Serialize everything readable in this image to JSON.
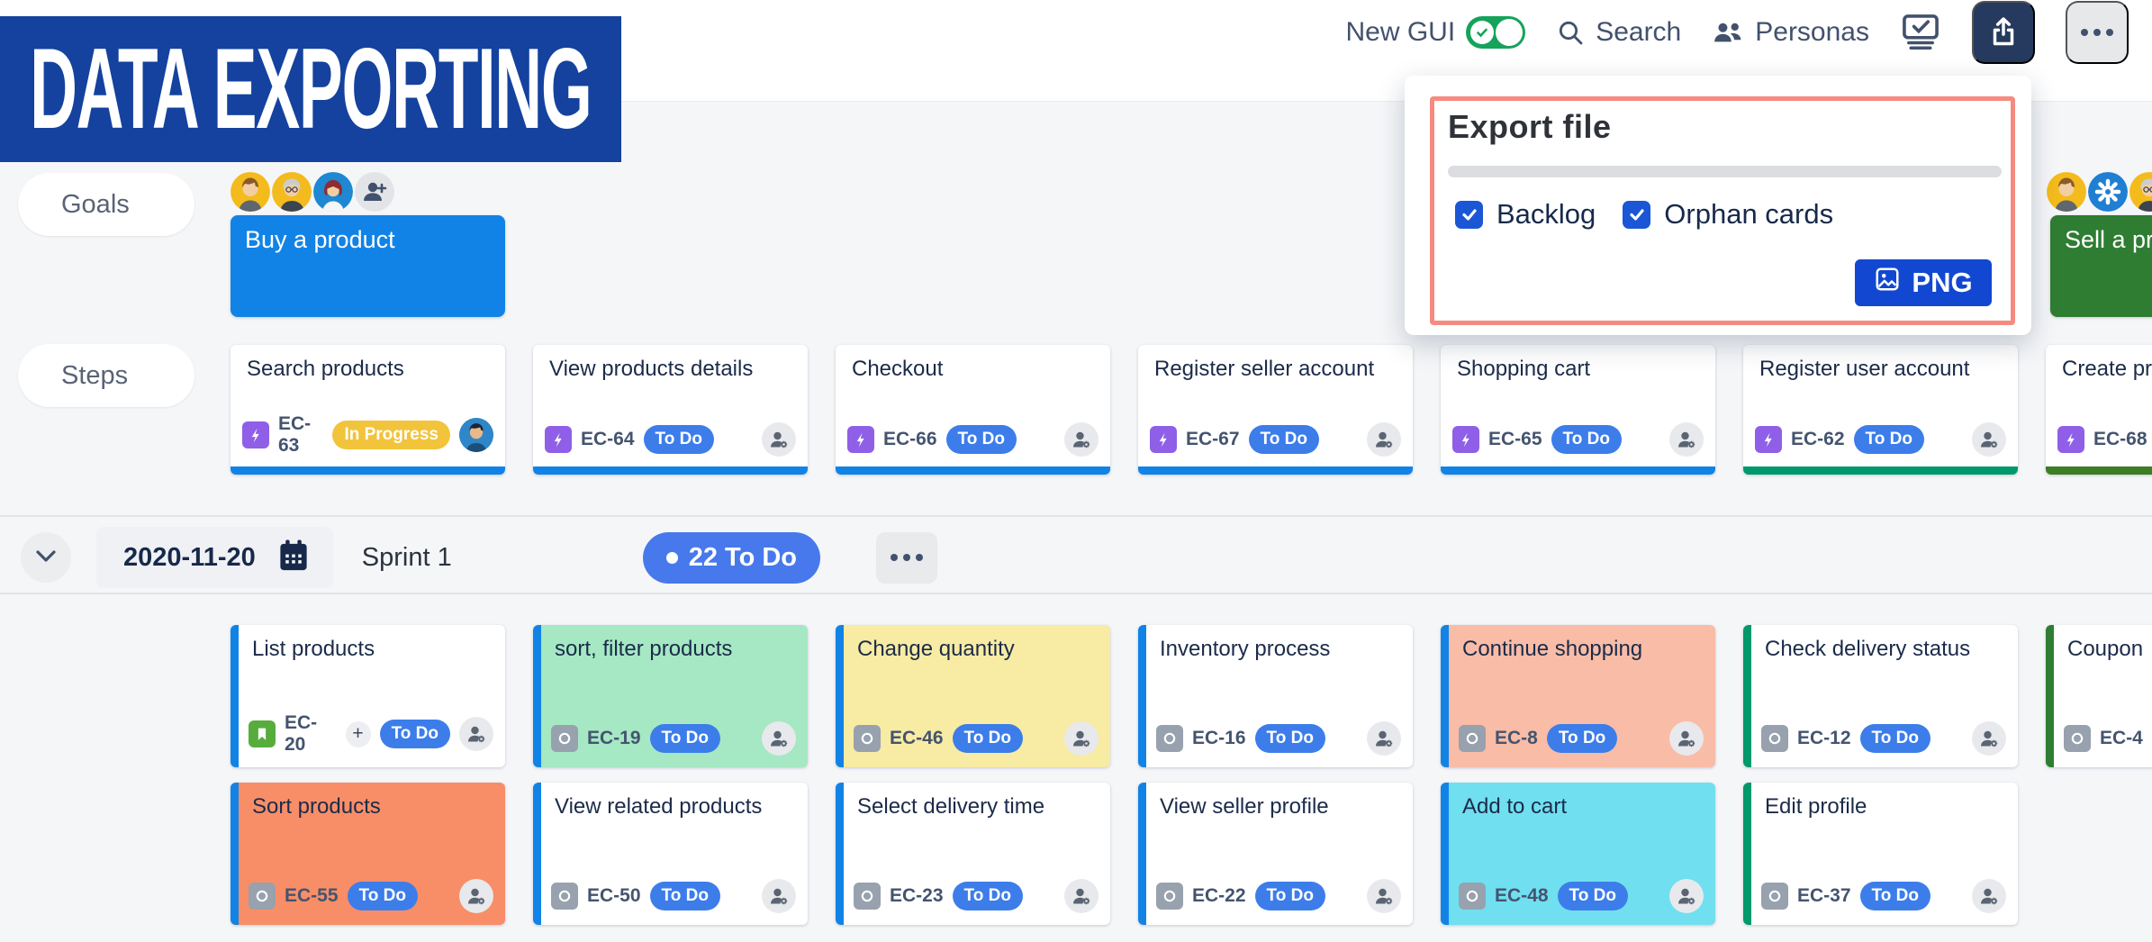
{
  "banner": {
    "title": "DATA EXPORTING"
  },
  "toolbar": {
    "new_gui_label": "New GUI",
    "new_gui_on": true,
    "search_label": "Search",
    "personas_label": "Personas",
    "icons": [
      "board-check-icon",
      "share-icon",
      "more-icon"
    ]
  },
  "export_popup": {
    "title": "Export file",
    "checkboxes": [
      {
        "label": "Backlog",
        "checked": true
      },
      {
        "label": "Orphan cards",
        "checked": true
      }
    ],
    "export_button_label": "PNG",
    "export_button_icon": "image-icon",
    "highlight_color": "#F58B80",
    "button_color": "#1248D1"
  },
  "palette": {
    "status": {
      "To Do": "#3C7DEA",
      "In Progress": "#F2C43B"
    },
    "accent_blue": "#1283E6",
    "accent_teal": "#00996B",
    "accent_green_dark": "#3D7D23",
    "accent_green": "#2E7D32"
  },
  "board": {
    "goals_label": "Goals",
    "steps_label": "Steps",
    "personas_left": [
      "man",
      "grandma",
      "woman"
    ],
    "personas_left_add": "add-persona-button",
    "personas_right": [
      "man",
      "gear",
      "grandma"
    ],
    "goals": [
      {
        "title": "Buy a product",
        "bg": "#1283E6"
      },
      {
        "title": "Sell a product",
        "bg": "#2E7D32"
      }
    ],
    "steps": [
      {
        "title": "Search products",
        "key": "EC-63",
        "type": "epic",
        "status": "In Progress",
        "accent": "#1283E6",
        "assignee": "photo"
      },
      {
        "title": "View products details",
        "key": "EC-64",
        "type": "epic",
        "status": "To Do",
        "accent": "#1283E6",
        "assignee": "unassigned"
      },
      {
        "title": "Checkout",
        "key": "EC-66",
        "type": "epic",
        "status": "To Do",
        "accent": "#1283E6",
        "assignee": "unassigned"
      },
      {
        "title": "Register seller account",
        "key": "EC-67",
        "type": "epic",
        "status": "To Do",
        "accent": "#1283E6",
        "assignee": "unassigned"
      },
      {
        "title": "Shopping cart",
        "key": "EC-65",
        "type": "epic",
        "status": "To Do",
        "accent": "#1283E6",
        "assignee": "unassigned"
      },
      {
        "title": "Register user account",
        "key": "EC-62",
        "type": "epic",
        "status": "To Do",
        "accent": "#00996B",
        "assignee": "unassigned"
      },
      {
        "title": "Create product",
        "key": "EC-68",
        "type": "epic",
        "status": "To Do",
        "accent": "#3D7D23",
        "assignee": "unassigned"
      }
    ],
    "sprint": {
      "date": "2020-11-20",
      "name": "Sprint 1",
      "badge": "22 To Do",
      "rows": [
        [
          {
            "title": "List products",
            "key": "EC-20",
            "type": "story",
            "status": "To Do",
            "accent": "#1283E6",
            "bg": "#FFFFFF",
            "plus": true,
            "assignee": "unassigned"
          },
          {
            "title": "sort, filter products",
            "key": "EC-19",
            "type": "task",
            "status": "To Do",
            "accent": "#1283E6",
            "bg": "#A5E8C3",
            "assignee": "unassigned"
          },
          {
            "title": "Change quantity",
            "key": "EC-46",
            "type": "task",
            "status": "To Do",
            "accent": "#1283E6",
            "bg": "#F8EBA3",
            "assignee": "unassigned"
          },
          {
            "title": "Inventory process",
            "key": "EC-16",
            "type": "task",
            "status": "To Do",
            "accent": "#1283E6",
            "bg": "#FFFFFF",
            "assignee": "unassigned"
          },
          {
            "title": "Continue shopping",
            "key": "EC-8",
            "type": "task",
            "status": "To Do",
            "accent": "#1283E6",
            "bg": "#F9BCA6",
            "assignee": "unassigned"
          },
          {
            "title": "Check delivery status",
            "key": "EC-12",
            "type": "task",
            "status": "To Do",
            "accent": "#00996B",
            "bg": "#FFFFFF",
            "assignee": "unassigned"
          },
          {
            "title": "Coupon",
            "key": "EC-4",
            "type": "task",
            "status": "To Do",
            "accent": "#2E7D32",
            "bg": "#FFFFFF",
            "assignee": "unassigned"
          }
        ],
        [
          {
            "title": "Sort products",
            "key": "EC-55",
            "type": "task",
            "status": "To Do",
            "accent": "#1283E6",
            "bg": "#F88E67",
            "assignee": "unassigned"
          },
          {
            "title": "View related products",
            "key": "EC-50",
            "type": "task",
            "status": "To Do",
            "accent": "#1283E6",
            "bg": "#FFFFFF",
            "assignee": "unassigned"
          },
          {
            "title": "Select delivery time",
            "key": "EC-23",
            "type": "task",
            "status": "To Do",
            "accent": "#1283E6",
            "bg": "#FFFFFF",
            "assignee": "unassigned"
          },
          {
            "title": "View seller profile",
            "key": "EC-22",
            "type": "task",
            "status": "To Do",
            "accent": "#1283E6",
            "bg": "#FFFFFF",
            "assignee": "unassigned"
          },
          {
            "title": "Add to cart",
            "key": "EC-48",
            "type": "task",
            "status": "To Do",
            "accent": "#1283E6",
            "bg": "#70DFF0",
            "assignee": "unassigned"
          },
          {
            "title": "Edit profile",
            "key": "EC-37",
            "type": "task",
            "status": "To Do",
            "accent": "#00996B",
            "bg": "#FFFFFF",
            "assignee": "unassigned"
          }
        ]
      ]
    }
  }
}
